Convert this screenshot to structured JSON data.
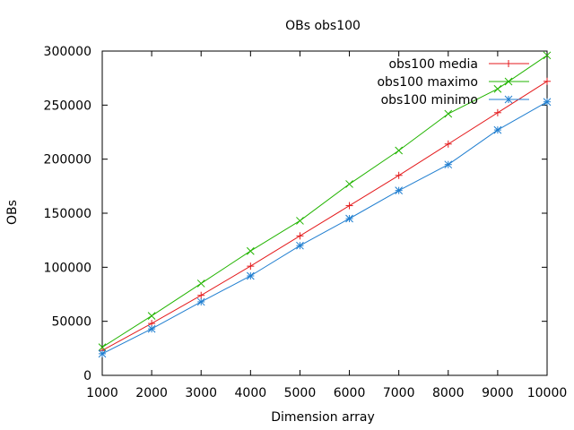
{
  "chart_data": {
    "type": "line",
    "title": "OBs obs100",
    "xlabel": "Dimension array",
    "ylabel": "OBs",
    "xlim": [
      1000,
      10000
    ],
    "ylim": [
      0,
      300000
    ],
    "x_ticks": [
      1000,
      2000,
      3000,
      4000,
      5000,
      6000,
      7000,
      8000,
      9000,
      10000
    ],
    "y_ticks": [
      0,
      50000,
      100000,
      150000,
      200000,
      250000,
      300000
    ],
    "grid": false,
    "legend_position": "top-right",
    "x": [
      1000,
      2000,
      3000,
      4000,
      5000,
      6000,
      7000,
      8000,
      9000,
      10000
    ],
    "series": [
      {
        "name": "obs100 media",
        "color": "#e41a1c",
        "marker": "plus",
        "values": [
          23000,
          48000,
          74000,
          101000,
          129000,
          157000,
          185000,
          214000,
          243000,
          272000
        ]
      },
      {
        "name": "obs100 maximo",
        "color": "#22b400",
        "marker": "cross",
        "values": [
          26000,
          55000,
          85000,
          115000,
          143000,
          177000,
          208000,
          242000,
          265000,
          296000
        ]
      },
      {
        "name": "obs100 minimo",
        "color": "#1f7ed0",
        "marker": "star",
        "values": [
          20000,
          43000,
          68000,
          92000,
          120000,
          145000,
          171000,
          195000,
          227000,
          253000
        ]
      }
    ]
  }
}
